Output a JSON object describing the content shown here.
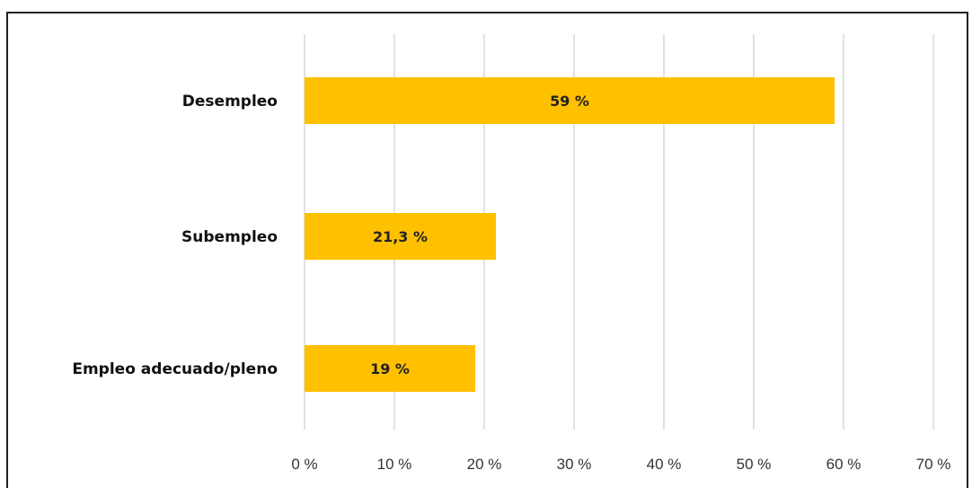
{
  "chart_data": {
    "type": "bar",
    "orientation": "horizontal",
    "categories": [
      "Desempleo",
      "Subempleo",
      "Empleo adecuado/pleno"
    ],
    "values": [
      59,
      21.3,
      19
    ],
    "value_labels": [
      "59 %",
      "21,3 %",
      "19 %"
    ],
    "xlim": [
      0,
      70
    ],
    "xticks": [
      0,
      10,
      20,
      30,
      40,
      50,
      60,
      70
    ],
    "xtick_labels": [
      "0 %",
      "10 %",
      "20 %",
      "30 %",
      "40 %",
      "50 %",
      "60 %",
      "70 %"
    ],
    "grid": true,
    "bar_color": "#FFC000",
    "title": "",
    "xlabel": "",
    "ylabel": ""
  }
}
